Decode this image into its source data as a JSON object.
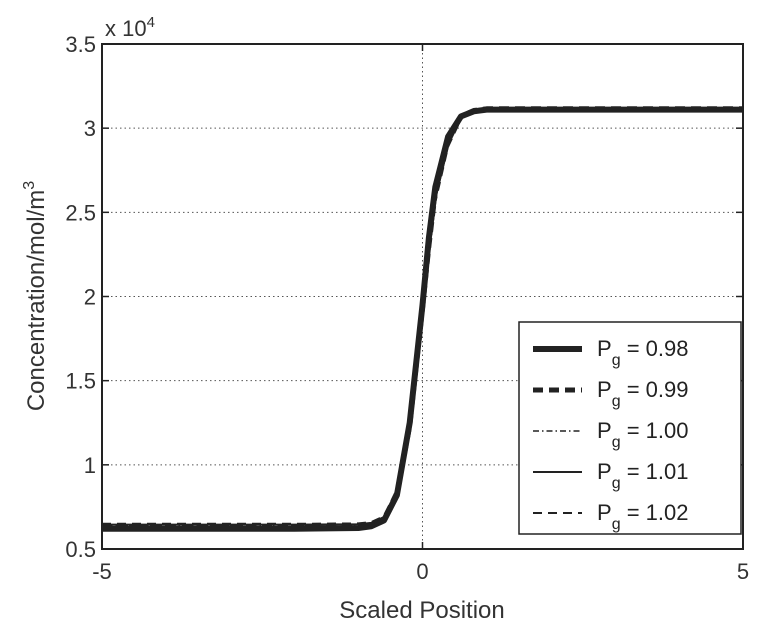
{
  "chart_data": {
    "type": "line",
    "xlabel": "Scaled Position",
    "ylabel": "Concentration/mol/m",
    "ylabel_sup": "3",
    "y_multiplier": "x 10",
    "y_multiplier_exp": "4",
    "xlim": [
      -5,
      5
    ],
    "ylim": [
      5000,
      35000
    ],
    "xticks": [
      -5,
      0,
      5
    ],
    "xtick_labels": [
      "-5",
      "0",
      "5"
    ],
    "yticks": [
      5000,
      10000,
      15000,
      20000,
      25000,
      30000,
      35000
    ],
    "ytick_labels": [
      "0.5",
      "1",
      "1.5",
      "2",
      "2.5",
      "3",
      "3.5"
    ],
    "grid": "dotted",
    "legend_position": "lower-right",
    "series": [
      {
        "name": "P",
        "sub": "g",
        "value_text": " = 0.98",
        "style": "thick-solid",
        "x": [
          -5,
          -2,
          -1,
          -0.8,
          -0.6,
          -0.4,
          -0.2,
          -0.1,
          0,
          0.1,
          0.2,
          0.4,
          0.6,
          0.8,
          1,
          2,
          5
        ],
        "values": [
          6200,
          6200,
          6250,
          6350,
          6700,
          8200,
          12500,
          16000,
          19500,
          23500,
          26500,
          29500,
          30700,
          31000,
          31100,
          31100,
          31100
        ]
      },
      {
        "name": "P",
        "sub": "g",
        "value_text": " = 0.99",
        "style": "thick-dashed",
        "x": [
          -5,
          -2,
          -1,
          -0.8,
          -0.6,
          -0.4,
          -0.2,
          -0.1,
          0,
          0.1,
          0.2,
          0.4,
          0.6,
          0.8,
          1,
          2,
          5
        ],
        "values": [
          6300,
          6300,
          6320,
          6400,
          6800,
          8300,
          12300,
          15800,
          19300,
          23000,
          26200,
          29300,
          30700,
          31050,
          31150,
          31150,
          31150
        ]
      },
      {
        "name": "P",
        "sub": "g",
        "value_text": " = 1.00",
        "style": "dash-dot",
        "x": [
          -5,
          -2,
          -1,
          -0.8,
          -0.6,
          -0.4,
          -0.2,
          -0.1,
          0,
          0.1,
          0.2,
          0.4,
          0.6,
          0.8,
          1,
          2,
          5
        ],
        "values": [
          6350,
          6350,
          6370,
          6450,
          6850,
          8400,
          12200,
          15600,
          19100,
          22800,
          26000,
          29200,
          30650,
          31100,
          31200,
          31200,
          31200
        ]
      },
      {
        "name": "P",
        "sub": "g",
        "value_text": " = 1.01",
        "style": "thin-solid",
        "x": [
          -5,
          -2,
          -1,
          -0.8,
          -0.6,
          -0.4,
          -0.2,
          -0.1,
          0,
          0.1,
          0.2,
          0.4,
          0.6,
          0.8,
          1,
          2,
          5
        ],
        "values": [
          6450,
          6450,
          6470,
          6550,
          6900,
          8500,
          12000,
          15400,
          18900,
          22600,
          25800,
          29000,
          30600,
          31100,
          31200,
          31200,
          31200
        ]
      },
      {
        "name": "P",
        "sub": "g",
        "value_text": " = 1.02",
        "style": "thin-dashed",
        "x": [
          -5,
          -2,
          -1,
          -0.8,
          -0.6,
          -0.4,
          -0.2,
          -0.1,
          0,
          0.1,
          0.2,
          0.4,
          0.6,
          0.8,
          1,
          2,
          5
        ],
        "values": [
          6500,
          6500,
          6520,
          6600,
          6950,
          8550,
          11900,
          15200,
          18700,
          22400,
          25600,
          28900,
          30550,
          31100,
          31200,
          31200,
          31200
        ]
      }
    ]
  }
}
